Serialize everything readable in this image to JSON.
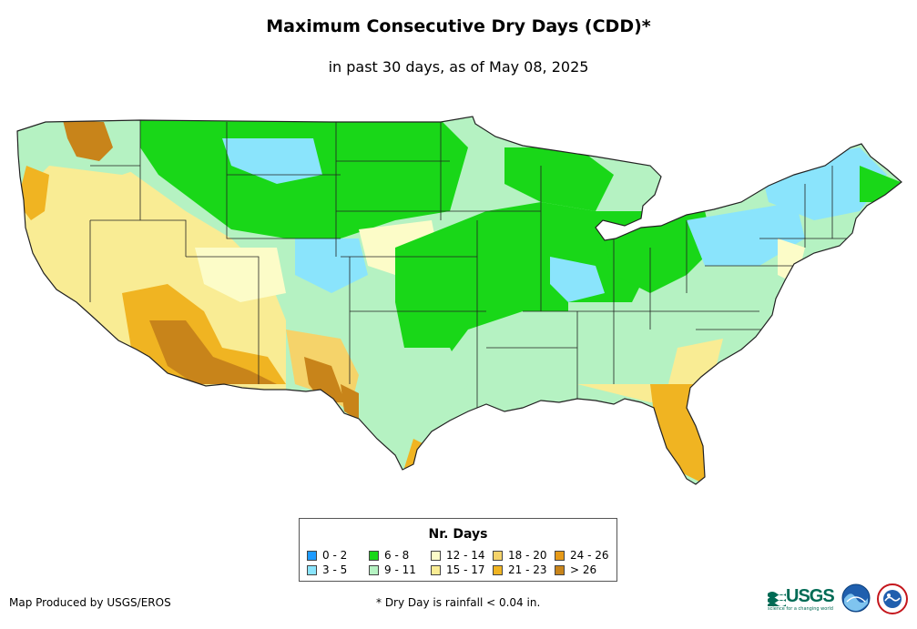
{
  "map": {
    "title": "Maximum Consecutive Dry Days (CDD)*",
    "subtitle": "in past 30 days, as of May 08, 2025",
    "region": "Contiguous United States"
  },
  "legend": {
    "title": "Nr. Days",
    "items": [
      {
        "label": "0 - 2",
        "color": "#1e9bff"
      },
      {
        "label": "3 - 5",
        "color": "#8ae4fc"
      },
      {
        "label": "6 - 8",
        "color": "#19d718"
      },
      {
        "label": "9 - 11",
        "color": "#b5f2c2"
      },
      {
        "label": "12 - 14",
        "color": "#fcfcc8"
      },
      {
        "label": "15 - 17",
        "color": "#f9ec94"
      },
      {
        "label": "18 - 20",
        "color": "#f5d36a"
      },
      {
        "label": "21 - 23",
        "color": "#f0b422"
      },
      {
        "label": "24 - 26",
        "color": "#e69a18"
      },
      {
        "label": "> 26",
        "color": "#c8841a"
      }
    ]
  },
  "footer": {
    "credit": "Map Produced by USGS/EROS",
    "footnote": "* Dry Day is rainfall < 0.04 in.",
    "logos": {
      "usgs": "USGS",
      "usgs_tagline": "science for a changing world",
      "noaa": "noaa-logo",
      "nws": "nws-logo"
    }
  }
}
